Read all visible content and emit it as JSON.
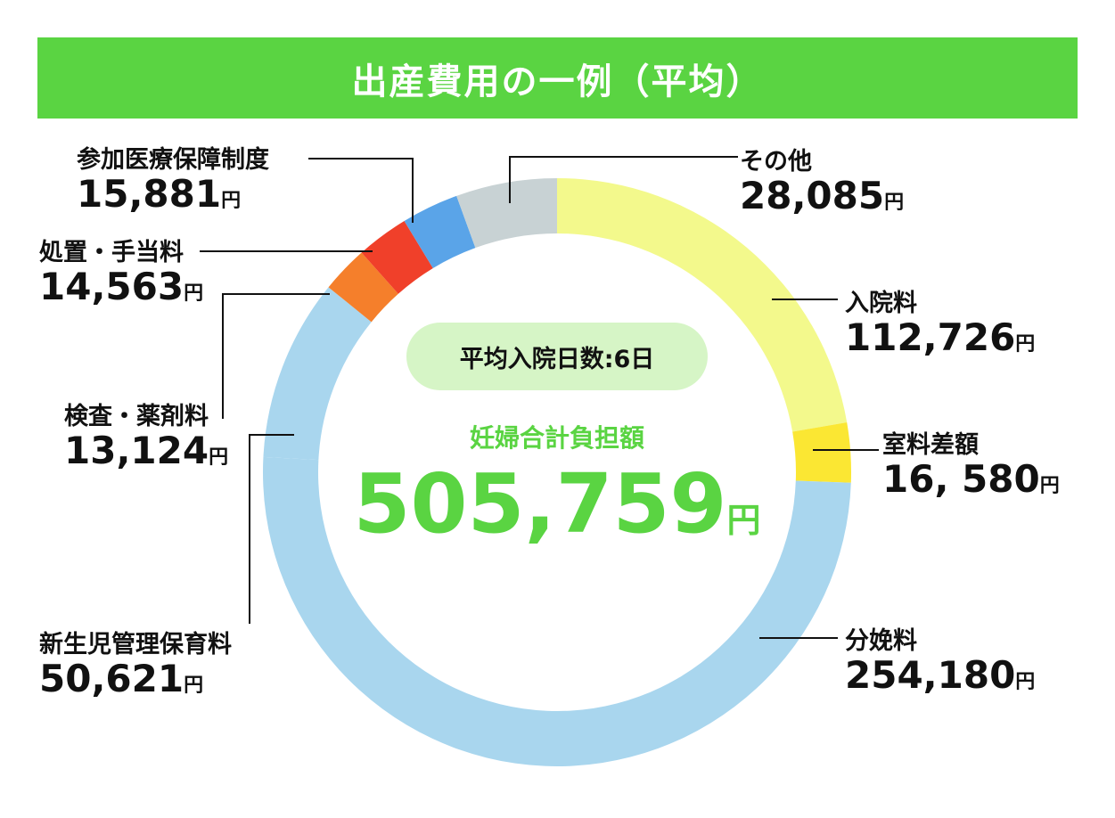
{
  "title": "出産費用の一例（平均）",
  "colors": {
    "banner": "#5ad442",
    "accent_green": "#5ad442",
    "pill_bg": "#d6f5c6",
    "leader": "#111111"
  },
  "center": {
    "avg_days": "平均入院日数:6日",
    "total_label": "妊婦合計負担額",
    "total_value": "505,759",
    "total_unit": "円"
  },
  "chart_data": {
    "type": "pie",
    "variant": "donut",
    "title": "出産費用の一例（平均）",
    "unit": "円",
    "slices": [
      {
        "label": "入院料",
        "value": 112726,
        "display": "112,726",
        "color": "#f3f98c"
      },
      {
        "label": "室料差額",
        "value": 16580,
        "display": "16, 580",
        "color": "#fbe733"
      },
      {
        "label": "分娩料",
        "value": 254180,
        "display": "254,180",
        "color": "#a9d6ee"
      },
      {
        "label": "新生児管理保育料",
        "value": 50621,
        "display": "50,621",
        "color": "#a9d6ee"
      },
      {
        "label": "検査・薬剤料",
        "value": 13124,
        "display": "13,124",
        "color": "#f57f2b"
      },
      {
        "label": "処置・手当料",
        "value": 14563,
        "display": "14,563",
        "color": "#f0402a"
      },
      {
        "label": "参加医療保障制度",
        "value": 15881,
        "display": "15,881",
        "color": "#5aa4e8"
      },
      {
        "label": "その他",
        "value": 28085,
        "display": "28,085",
        "color": "#c8d2d4"
      }
    ]
  }
}
